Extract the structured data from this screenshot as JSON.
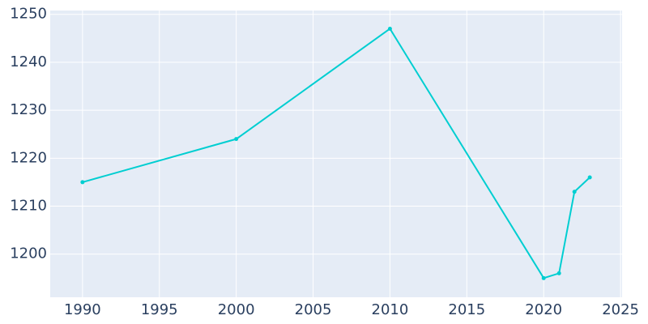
{
  "chart_data": {
    "type": "line",
    "x": [
      1990,
      2000,
      2010,
      2020,
      2021,
      2022,
      2023
    ],
    "series": [
      {
        "color": "#00ced1",
        "values": [
          1215,
          1224,
          1247,
          1195,
          1196,
          1213,
          1216
        ]
      }
    ],
    "xlim": [
      1987.9,
      2025.1
    ],
    "xticks": [
      1990,
      1995,
      2000,
      2005,
      2010,
      2015,
      2020,
      2025
    ],
    "ylim": [
      1191,
      1250.8
    ],
    "yticks": [
      1200,
      1210,
      1220,
      1230,
      1240,
      1250
    ],
    "grid": true,
    "background": "#e5ecf6"
  }
}
